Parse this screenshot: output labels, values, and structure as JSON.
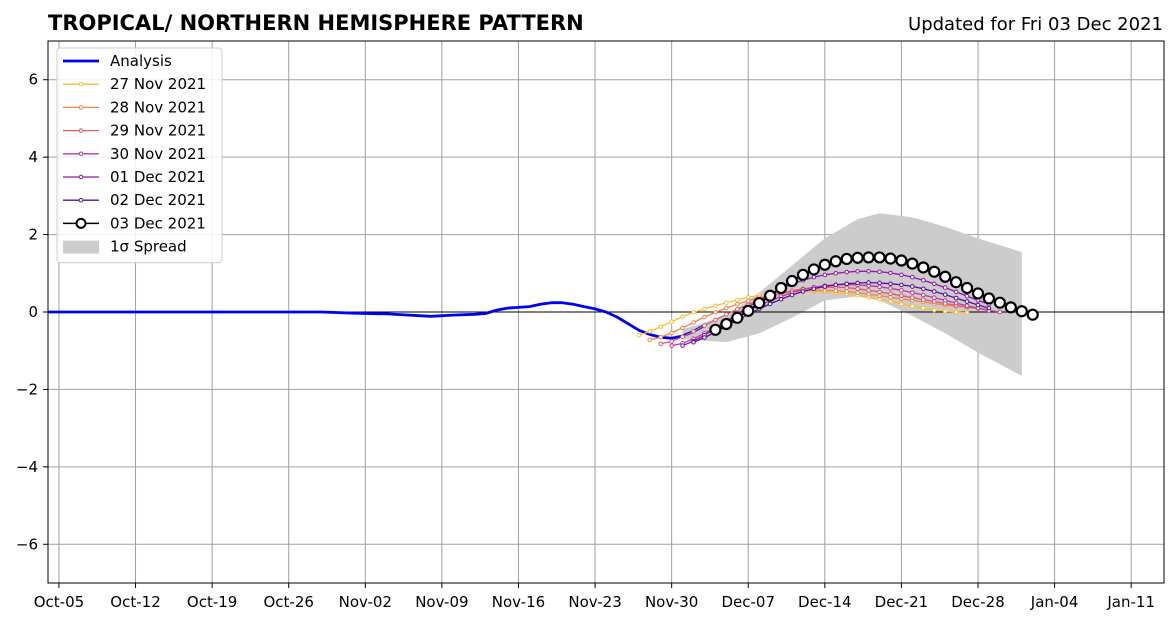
{
  "chart_data": {
    "type": "line",
    "title": "TROPICAL/ NORTHERN HEMISPHERE PATTERN",
    "subtitle": "Updated for Fri 03 Dec 2021",
    "xlabel": "",
    "ylabel": "",
    "xlim": [
      "2021-10-04",
      "2022-01-14"
    ],
    "ylim": [
      -7,
      7
    ],
    "x_ticks": [
      "Oct-05",
      "Oct-12",
      "Oct-19",
      "Oct-26",
      "Nov-02",
      "Nov-09",
      "Nov-16",
      "Nov-23",
      "Nov-30",
      "Dec-07",
      "Dec-14",
      "Dec-21",
      "Dec-28",
      "Jan-04",
      "Jan-11"
    ],
    "y_ticks": [
      -6,
      -4,
      -2,
      0,
      2,
      4,
      6
    ],
    "y_tick_labels": [
      "−6",
      "−4",
      "−2",
      "0",
      "2",
      "4",
      "6"
    ],
    "grid": true,
    "legend": {
      "placement": "upper-left"
    },
    "analysis": {
      "name": "Analysis",
      "color": "#0000ee",
      "points": [
        [
          "2021-10-04",
          0.0
        ],
        [
          "2021-10-20",
          0.0
        ],
        [
          "2021-10-29",
          0.0
        ],
        [
          "2021-11-01",
          -0.03
        ],
        [
          "2021-11-04",
          -0.05
        ],
        [
          "2021-11-06",
          -0.08
        ],
        [
          "2021-11-08",
          -0.11
        ],
        [
          "2021-11-10",
          -0.08
        ],
        [
          "2021-11-12",
          -0.06
        ],
        [
          "2021-11-13",
          -0.04
        ],
        [
          "2021-11-14",
          0.05
        ],
        [
          "2021-11-15",
          0.1
        ],
        [
          "2021-11-17",
          0.14
        ],
        [
          "2021-11-18",
          0.2
        ],
        [
          "2021-11-19",
          0.24
        ],
        [
          "2021-11-20",
          0.24
        ],
        [
          "2021-11-21",
          0.2
        ],
        [
          "2021-11-22",
          0.14
        ],
        [
          "2021-11-23",
          0.08
        ],
        [
          "2021-11-24",
          0.0
        ],
        [
          "2021-11-25",
          -0.13
        ],
        [
          "2021-11-26",
          -0.3
        ],
        [
          "2021-11-27",
          -0.47
        ],
        [
          "2021-11-28",
          -0.58
        ],
        [
          "2021-11-29",
          -0.65
        ],
        [
          "2021-11-30",
          -0.68
        ],
        [
          "2021-12-01",
          -0.62
        ],
        [
          "2021-12-02",
          -0.5
        ],
        [
          "2021-12-03",
          -0.35
        ]
      ]
    },
    "series": [
      {
        "name": "27 Nov 2021",
        "color": "#f9bd39",
        "start": "2021-11-27",
        "step_days": 1,
        "values": [
          -0.6,
          -0.5,
          -0.38,
          -0.25,
          -0.12,
          -0.01,
          0.08,
          0.16,
          0.24,
          0.31,
          0.38,
          0.43,
          0.47,
          0.5,
          0.52,
          0.53,
          0.53,
          0.52,
          0.5,
          0.47,
          0.43,
          0.38,
          0.33,
          0.27,
          0.21,
          0.15,
          0.1,
          0.05,
          0.02,
          0.0,
          -0.02
        ]
      },
      {
        "name": "28 Nov 2021",
        "color": "#f2844b",
        "start": "2021-11-28",
        "step_days": 1,
        "values": [
          -0.72,
          -0.65,
          -0.54,
          -0.41,
          -0.27,
          -0.13,
          -0.01,
          0.1,
          0.2,
          0.29,
          0.37,
          0.43,
          0.48,
          0.52,
          0.55,
          0.56,
          0.56,
          0.55,
          0.53,
          0.5,
          0.46,
          0.42,
          0.38,
          0.34,
          0.3,
          0.26,
          0.22,
          0.18,
          0.15,
          0.12,
          0.1
        ]
      },
      {
        "name": "29 Nov 2021",
        "color": "#e05a6f",
        "start": "2021-11-29",
        "step_days": 1,
        "values": [
          -0.82,
          -0.76,
          -0.64,
          -0.5,
          -0.35,
          -0.2,
          -0.06,
          0.07,
          0.19,
          0.3,
          0.4,
          0.48,
          0.55,
          0.6,
          0.63,
          0.64,
          0.64,
          0.63,
          0.6,
          0.56,
          0.52,
          0.47,
          0.42,
          0.37,
          0.32,
          0.27,
          0.22,
          0.17,
          0.13,
          0.09,
          0.06
        ]
      },
      {
        "name": "30 Nov 2021",
        "color": "#c0399a",
        "start": "2021-11-30",
        "step_days": 1,
        "values": [
          -0.87,
          -0.81,
          -0.69,
          -0.55,
          -0.4,
          -0.25,
          -0.1,
          0.04,
          0.17,
          0.29,
          0.4,
          0.5,
          0.58,
          0.64,
          0.68,
          0.7,
          0.71,
          0.7,
          0.68,
          0.65,
          0.61,
          0.56,
          0.5,
          0.44,
          0.37,
          0.3,
          0.23,
          0.16,
          0.1,
          0.04,
          0.0
        ]
      },
      {
        "name": "01 Dec 2021",
        "color": "#9216b0",
        "start": "2021-12-01",
        "step_days": 1,
        "values": [
          -0.87,
          -0.75,
          -0.6,
          -0.42,
          -0.24,
          -0.05,
          0.13,
          0.3,
          0.46,
          0.6,
          0.72,
          0.82,
          0.9,
          0.96,
          1.0,
          1.03,
          1.05,
          1.05,
          1.04,
          1.01,
          0.96,
          0.9,
          0.82,
          0.73,
          0.63,
          0.52,
          0.41,
          0.3,
          0.2
        ]
      },
      {
        "name": "02 Dec 2021",
        "color": "#5a0c9c",
        "start": "2021-12-02",
        "step_days": 1,
        "values": [
          -0.78,
          -0.66,
          -0.52,
          -0.37,
          -0.21,
          -0.06,
          0.08,
          0.21,
          0.33,
          0.44,
          0.53,
          0.6,
          0.66,
          0.7,
          0.73,
          0.75,
          0.76,
          0.75,
          0.73,
          0.7,
          0.66,
          0.6,
          0.53,
          0.45,
          0.36,
          0.27,
          0.18,
          0.1
        ]
      },
      {
        "name": "03 Dec 2021",
        "color": "#000000",
        "start": "2021-12-04",
        "step_days": 1,
        "values": [
          -0.46,
          -0.31,
          -0.15,
          0.03,
          0.23,
          0.42,
          0.62,
          0.8,
          0.96,
          1.1,
          1.22,
          1.31,
          1.37,
          1.4,
          1.41,
          1.41,
          1.38,
          1.33,
          1.25,
          1.15,
          1.04,
          0.91,
          0.77,
          0.62,
          0.48,
          0.35,
          0.24,
          0.12,
          0.02,
          -0.07
        ]
      }
    ],
    "spread": {
      "name": "1σ Spread",
      "color": "#cccccc",
      "upper": [
        [
          "2021-12-01",
          -0.45
        ],
        [
          "2021-12-05",
          -0.1
        ],
        [
          "2021-12-08",
          0.5
        ],
        [
          "2021-12-11",
          1.2
        ],
        [
          "2021-12-14",
          1.9
        ],
        [
          "2021-12-17",
          2.4
        ],
        [
          "2021-12-19",
          2.55
        ],
        [
          "2021-12-22",
          2.45
        ],
        [
          "2021-12-25",
          2.2
        ],
        [
          "2021-12-28",
          1.9
        ],
        [
          "2022-01-01",
          1.55
        ]
      ],
      "lower": [
        [
          "2021-12-01",
          -0.7
        ],
        [
          "2021-12-05",
          -0.78
        ],
        [
          "2021-12-08",
          -0.55
        ],
        [
          "2021-12-11",
          -0.15
        ],
        [
          "2021-12-14",
          0.3
        ],
        [
          "2021-12-17",
          0.4
        ],
        [
          "2021-12-19",
          0.3
        ],
        [
          "2021-12-22",
          -0.1
        ],
        [
          "2021-12-25",
          -0.55
        ],
        [
          "2021-12-28",
          -1.05
        ],
        [
          "2022-01-01",
          -1.65
        ]
      ]
    }
  }
}
